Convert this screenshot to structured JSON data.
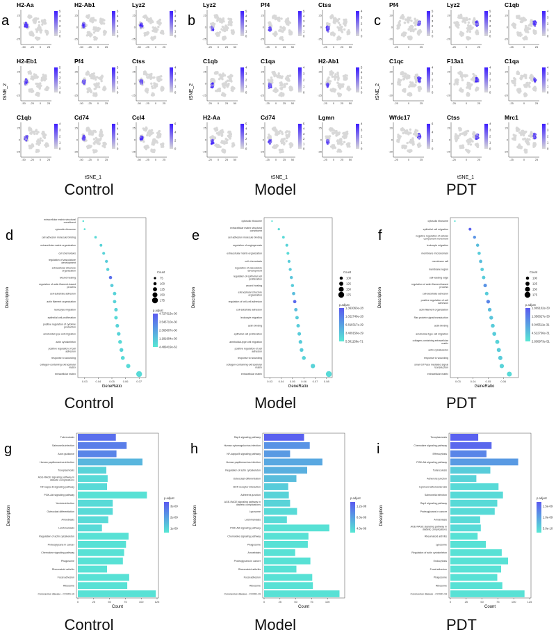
{
  "colors": {
    "feature_low": "#d8d8d8",
    "feature_high": "#3b1cff",
    "padj_high": "#5a5af0",
    "padj_low": "#58e8d4"
  },
  "group_labels": [
    "Control",
    "Model",
    "PDT"
  ],
  "feature_plots": {
    "x_axis_label": "tSNE_1",
    "y_axis_label": "tSNE_2",
    "panels": [
      {
        "letter": "a",
        "group": "Control",
        "genes": [
          {
            "name": "H2-Aa",
            "scale": [
              "0",
              "1",
              "2",
              "3",
              "4",
              "5"
            ]
          },
          {
            "name": "H2-Ab1",
            "scale": [
              "0",
              "1",
              "2",
              "3",
              "4",
              "5"
            ]
          },
          {
            "name": "Lyz2",
            "scale": [
              "0",
              "1",
              "2",
              "3",
              "4",
              "5"
            ]
          },
          {
            "name": "H2-Eb1",
            "scale": [
              "0",
              "1",
              "2",
              "3",
              "4",
              "5"
            ]
          },
          {
            "name": "Pf4",
            "scale": [
              "0",
              "1",
              "2",
              "3",
              "4",
              "5"
            ]
          },
          {
            "name": "Ctss",
            "scale": [
              "0",
              "1",
              "2",
              "3",
              "4"
            ]
          },
          {
            "name": "C1qb",
            "scale": [
              "0",
              "1",
              "2",
              "3",
              "4"
            ]
          },
          {
            "name": "Cd74",
            "scale": [
              "0",
              "1",
              "2",
              "3",
              "4",
              "5"
            ]
          },
          {
            "name": "Ccl4",
            "scale": [
              "0",
              "2",
              "4",
              "6"
            ]
          }
        ],
        "x_ticks": [
          "-50",
          "-25",
          "0",
          "25"
        ],
        "y_ticks": [
          "25",
          "0",
          "-25"
        ]
      },
      {
        "letter": "b",
        "group": "Model",
        "genes": [
          {
            "name": "Lyz2",
            "scale": [
              "0",
              "1",
              "2",
              "3",
              "4",
              "5"
            ]
          },
          {
            "name": "Pf4",
            "scale": [
              "0",
              "1",
              "2",
              "3",
              "4",
              "5"
            ]
          },
          {
            "name": "Ctss",
            "scale": [
              "0",
              "1",
              "2",
              "3",
              "4"
            ]
          },
          {
            "name": "C1qb",
            "scale": [
              "0",
              "1",
              "2",
              "3",
              "4"
            ]
          },
          {
            "name": "C1qa",
            "scale": [
              "0",
              "1",
              "2",
              "3",
              "4"
            ]
          },
          {
            "name": "H2-Ab1",
            "scale": [
              "0",
              "1",
              "2",
              "3",
              "4",
              "5"
            ]
          },
          {
            "name": "H2-Aa",
            "scale": [
              "0",
              "1",
              "2",
              "3",
              "4",
              "5"
            ]
          },
          {
            "name": "Cd74",
            "scale": [
              "0",
              "1",
              "2",
              "3",
              "4",
              "5"
            ]
          },
          {
            "name": "Lgmn",
            "scale": [
              "0",
              "1",
              "2",
              "3",
              "4"
            ]
          }
        ],
        "x_ticks": [
          "-25",
          "0",
          "25",
          "50"
        ],
        "y_ticks": [
          "25",
          "0",
          "-25"
        ]
      },
      {
        "letter": "c",
        "group": "PDT",
        "genes": [
          {
            "name": "Pf4",
            "scale": [
              "0",
              "1",
              "2",
              "3",
              "4",
              "5"
            ]
          },
          {
            "name": "Lyz2",
            "scale": [
              "0",
              "1",
              "2",
              "3",
              "4",
              "5"
            ]
          },
          {
            "name": "C1qb",
            "scale": [
              "0",
              "1",
              "2",
              "3",
              "4"
            ]
          },
          {
            "name": "C1qc",
            "scale": [
              "0",
              "1",
              "2",
              "3",
              "4"
            ]
          },
          {
            "name": "F13a1",
            "scale": [
              "0",
              "1",
              "2",
              "3",
              "4"
            ]
          },
          {
            "name": "C1qa",
            "scale": [
              "0",
              "1",
              "2",
              "3",
              "4"
            ]
          },
          {
            "name": "Wfdc17",
            "scale": [
              "0",
              "2",
              "4",
              "6"
            ]
          },
          {
            "name": "Ctss",
            "scale": [
              "0",
              "1",
              "2",
              "3",
              "4"
            ]
          },
          {
            "name": "Mrc1",
            "scale": [
              "0",
              "1",
              "2",
              "3",
              "4"
            ]
          }
        ],
        "x_ticks": [
          "-25",
          "0",
          "25"
        ],
        "y_ticks": [
          "20",
          "0",
          "-20"
        ]
      }
    ]
  },
  "chart_data": [
    {
      "type": "scatter",
      "panel": "d",
      "group": "Control",
      "xlabel": "GeneRatio",
      "ylabel": "Description",
      "xlim": [
        0.025,
        0.075
      ],
      "x_ticks": [
        "0.03",
        "0.04",
        "0.05",
        "0.06",
        "0.07"
      ],
      "size_legend_title": "Count",
      "size_legend": [
        "75",
        "100",
        "125",
        "150",
        "175"
      ],
      "color_legend_title": "p.adjust",
      "color_legend": [
        "4.727613e-30",
        "3.545710e-30",
        "2.363807e-30",
        "1.181904e-30",
        "4.489419e-62"
      ],
      "terms": [
        "extracellular matrix structural constituent",
        "cytosolic ribosome",
        "cell adhesion molecule binding",
        "extracellular matrix organization",
        "cell chemotaxis",
        "regulation of vasculature development",
        "extracellular structure organization",
        "wound healing",
        "regulation of actin filament-based process",
        "cell-substrate adhesion",
        "actin filament organization",
        "leukocyte migration",
        "epithelial cell proliferation",
        "positive regulation of cytokine production",
        "ameboidal-type cell migration",
        "actin cytoskeleton",
        "positive regulation of cell adhesion",
        "response to wounding",
        "collagen-containing extracellular matrix",
        "extracellular matrix"
      ],
      "gene_ratio": [
        0.029,
        0.03,
        0.038,
        0.042,
        0.044,
        0.046,
        0.047,
        0.049,
        0.05,
        0.052,
        0.052,
        0.053,
        0.053,
        0.054,
        0.055,
        0.056,
        0.057,
        0.058,
        0.062,
        0.07
      ],
      "count": [
        60,
        62,
        80,
        88,
        92,
        95,
        98,
        100,
        104,
        108,
        108,
        110,
        110,
        112,
        115,
        117,
        119,
        121,
        130,
        175
      ],
      "p_adjust_rel": [
        0.05,
        0.06,
        0.1,
        0.15,
        0.15,
        0.2,
        0.15,
        0.85,
        0.2,
        0.15,
        0.15,
        0.15,
        0.1,
        0.15,
        0.15,
        0.1,
        0.15,
        0.1,
        0.1,
        0.1
      ]
    },
    {
      "type": "scatter",
      "panel": "e",
      "group": "Model",
      "xlabel": "GeneRatio",
      "ylabel": "Description",
      "xlim": [
        0.025,
        0.085
      ],
      "x_ticks": [
        "0.03",
        "0.04",
        "0.05",
        "0.06",
        "0.07",
        "0.08"
      ],
      "size_legend_title": "Count",
      "size_legend": [
        "100",
        "125",
        "150",
        "175"
      ],
      "color_legend_title": "p.adjust",
      "color_legend": [
        "1.363063e-28",
        "1.022748e-28",
        "6.818317e-29",
        "3.409158e-29",
        "5.301158e-71"
      ],
      "terms": [
        "cytosolic ribosome",
        "extracellular matrix structural constituent",
        "cell adhesion molecule binding",
        "regulation of angiogenesis",
        "extracellular matrix organization",
        "cell chemotaxis",
        "regulation of vasculature development",
        "regulation of epithelial cell proliferation",
        "wound healing",
        "extracellular structure organization",
        "regulation of cell-cell adhesion",
        "cell-substrate adhesion",
        "leukocyte migration",
        "actin binding",
        "epithelial cell proliferation",
        "ameboidal-type cell migration",
        "positive regulation of cell adhesion",
        "response to wounding",
        "collagen-containing extracellular matrix",
        "extracellular matrix"
      ],
      "gene_ratio": [
        0.032,
        0.038,
        0.042,
        0.045,
        0.046,
        0.047,
        0.048,
        0.049,
        0.05,
        0.051,
        0.052,
        0.053,
        0.054,
        0.055,
        0.056,
        0.057,
        0.058,
        0.06,
        0.068,
        0.082
      ],
      "count": [
        55,
        75,
        85,
        90,
        92,
        94,
        96,
        98,
        100,
        102,
        104,
        106,
        108,
        110,
        112,
        114,
        116,
        120,
        135,
        175
      ],
      "p_adjust_rel": [
        0.05,
        0.1,
        0.1,
        0.15,
        0.1,
        0.2,
        0.2,
        0.25,
        0.2,
        0.3,
        0.9,
        0.3,
        0.2,
        0.2,
        0.2,
        0.2,
        0.2,
        0.15,
        0.15,
        0.1
      ]
    },
    {
      "type": "scatter",
      "panel": "f",
      "group": "PDT",
      "xlabel": "GeneRatio",
      "ylabel": "Description",
      "xlim": [
        0.025,
        0.07
      ],
      "x_ticks": [
        "0.03",
        "0.04",
        "0.05",
        "0.06"
      ],
      "size_legend_title": "Count",
      "size_legend": [
        "100",
        "125",
        "150",
        "175"
      ],
      "color_legend_title": "p.adjust",
      "color_legend": [
        "1.809102e-30",
        "1.356827e-30",
        "9.045511e-31",
        "4.522756e-31",
        "2.838973e-51"
      ],
      "terms": [
        "cytosolic ribosome",
        "epithelial cell migration",
        "negative regulation of cellular component movement",
        "leukocyte migration",
        "membrane microdomain",
        "membrane raft",
        "membrane region",
        "cell-leading edge",
        "regulation of actin filament-based process",
        "cell-substrate adhesion",
        "positive regulation of cell adhesion",
        "actin filament organization",
        "Ras protein signal transduction",
        "actin binding",
        "ameboidal-type cell migration",
        "collagen-containing extracellular matrix",
        "actin cytoskeleton",
        "response to wounding",
        "small GTPase mediated signal transduction",
        "extracellular matrix"
      ],
      "gene_ratio": [
        0.028,
        0.038,
        0.041,
        0.043,
        0.044,
        0.045,
        0.046,
        0.047,
        0.048,
        0.049,
        0.05,
        0.051,
        0.052,
        0.053,
        0.054,
        0.056,
        0.057,
        0.058,
        0.059,
        0.064
      ],
      "count": [
        55,
        90,
        95,
        100,
        102,
        104,
        106,
        108,
        110,
        112,
        114,
        116,
        118,
        120,
        122,
        125,
        127,
        130,
        132,
        150
      ],
      "p_adjust_rel": [
        0.05,
        0.95,
        0.6,
        0.3,
        0.2,
        0.3,
        0.2,
        0.2,
        0.6,
        0.2,
        0.7,
        0.3,
        0.25,
        0.2,
        0.2,
        0.15,
        0.2,
        0.2,
        0.15,
        0.1
      ]
    },
    {
      "type": "bar",
      "orientation": "horizontal",
      "panel": "g",
      "group": "Control",
      "xlabel": "Count",
      "ylabel": "Description",
      "xlim": [
        0,
        125
      ],
      "x_ticks": [
        "0",
        "25",
        "50",
        "75",
        "100",
        "125"
      ],
      "color_legend_title": "p.adjust",
      "color_legend": [
        "3e-09",
        "2e-09",
        "1e-09"
      ],
      "categories": [
        "Tuberculosis",
        "Salmonella infection",
        "Axon guidance",
        "Human papillomavirus infection",
        "Toxoplasmosis",
        "AGE-RAGE signaling pathway in diabetic complications",
        "NF-kappa B signaling pathway",
        "PI3K-Akt signaling pathway",
        "Yersinia infection",
        "Osteoclast differentiation",
        "Amoebiasis",
        "Leishmaniasis",
        "Regulation of actin cytoskeleton",
        "Proteoglycans in cancer",
        "Chemokine signaling pathway",
        "Phagosome",
        "Rheumatoid arthritis",
        "Focal adhesion",
        "Ribosome",
        "Coronavirus disease - COVID-19"
      ],
      "values": [
        60,
        77,
        61,
        102,
        45,
        47,
        46,
        109,
        55,
        55,
        48,
        38,
        80,
        76,
        73,
        71,
        46,
        81,
        78,
        123
      ],
      "p_adjust_rel": [
        0.85,
        0.75,
        0.7,
        0.35,
        0.15,
        0.1,
        0.1,
        0.05,
        0.1,
        0.1,
        0.1,
        0.1,
        0.05,
        0.05,
        0.05,
        0.05,
        0.05,
        0.05,
        0.05,
        0.05
      ]
    },
    {
      "type": "bar",
      "orientation": "horizontal",
      "panel": "h",
      "group": "Model",
      "xlabel": "Count",
      "ylabel": "Description",
      "xlim": [
        0,
        125
      ],
      "x_ticks": [
        "0",
        "25",
        "50",
        "75",
        "100"
      ],
      "color_legend_title": "p.adjust",
      "color_legend": [
        "1.2e-08",
        "8.0e-09",
        "4.0e-09"
      ],
      "categories": [
        "Rap1 signaling pathway",
        "Human cytomegalovirus infection",
        "NF-kappa B signaling pathway",
        "Human papillomavirus infection",
        "Regulation of actin cytoskeleton",
        "Osteoclast differentiation",
        "BCR receptor interaction",
        "Adherens junction",
        "AGE-RAGE signaling pathway in diabetic complications",
        "Lysosome",
        "Leishmaniasis",
        "PI3K-Akt signaling pathway",
        "Chemokine signaling pathway",
        "Phagosome",
        "Amoebiasis",
        "Proteoglycans in cancer",
        "Rheumatoid arthritis",
        "Focal adhesion",
        "Ribosome",
        "Coronavirus disease - COVID-19"
      ],
      "values": [
        63,
        72,
        41,
        92,
        68,
        51,
        38,
        39,
        41,
        52,
        36,
        103,
        70,
        69,
        49,
        73,
        51,
        76,
        77,
        119
      ],
      "p_adjust_rel": [
        0.95,
        0.6,
        0.55,
        0.45,
        0.4,
        0.3,
        0.2,
        0.15,
        0.15,
        0.1,
        0.1,
        0.05,
        0.05,
        0.05,
        0.05,
        0.05,
        0.05,
        0.05,
        0.05,
        0.05
      ]
    },
    {
      "type": "bar",
      "orientation": "horizontal",
      "panel": "i",
      "group": "PDT",
      "xlabel": "Count",
      "ylabel": "Description",
      "xlim": [
        0,
        125
      ],
      "x_ticks": [
        "0",
        "25",
        "50",
        "75",
        "100",
        "125"
      ],
      "color_legend_title": "p.adjust",
      "color_legend": [
        "1.5e-09",
        "1.0e-09",
        "5.0e-10"
      ],
      "categories": [
        "Toxoplasmosis",
        "Chemokine signaling pathway",
        "Efferocytosis",
        "PI3K-Akt signaling pathway",
        "Tuberculosis",
        "Adherens junction",
        "Lipid and atherosclerosis",
        "Salmonella infection",
        "Rap1 signaling pathway",
        "Proteoglycans in cancer",
        "Amoebiasis",
        "AGE-RAGE signaling pathway in diabetic complications",
        "Rheumatoid arthritis",
        "Lysosome",
        "Regulation of actin cytoskeleton",
        "Endocytosis",
        "Focal adhesion",
        "Phagosome",
        "Ribosome",
        "Coronavirus disease - COVID-19"
      ],
      "values": [
        44,
        65,
        57,
        107,
        63,
        41,
        76,
        83,
        74,
        70,
        47,
        48,
        43,
        56,
        81,
        91,
        80,
        74,
        82,
        117
      ],
      "p_adjust_rel": [
        0.95,
        0.9,
        0.7,
        0.55,
        0.2,
        0.15,
        0.1,
        0.1,
        0.1,
        0.1,
        0.1,
        0.1,
        0.05,
        0.05,
        0.05,
        0.05,
        0.05,
        0.05,
        0.05,
        0.05
      ]
    }
  ]
}
